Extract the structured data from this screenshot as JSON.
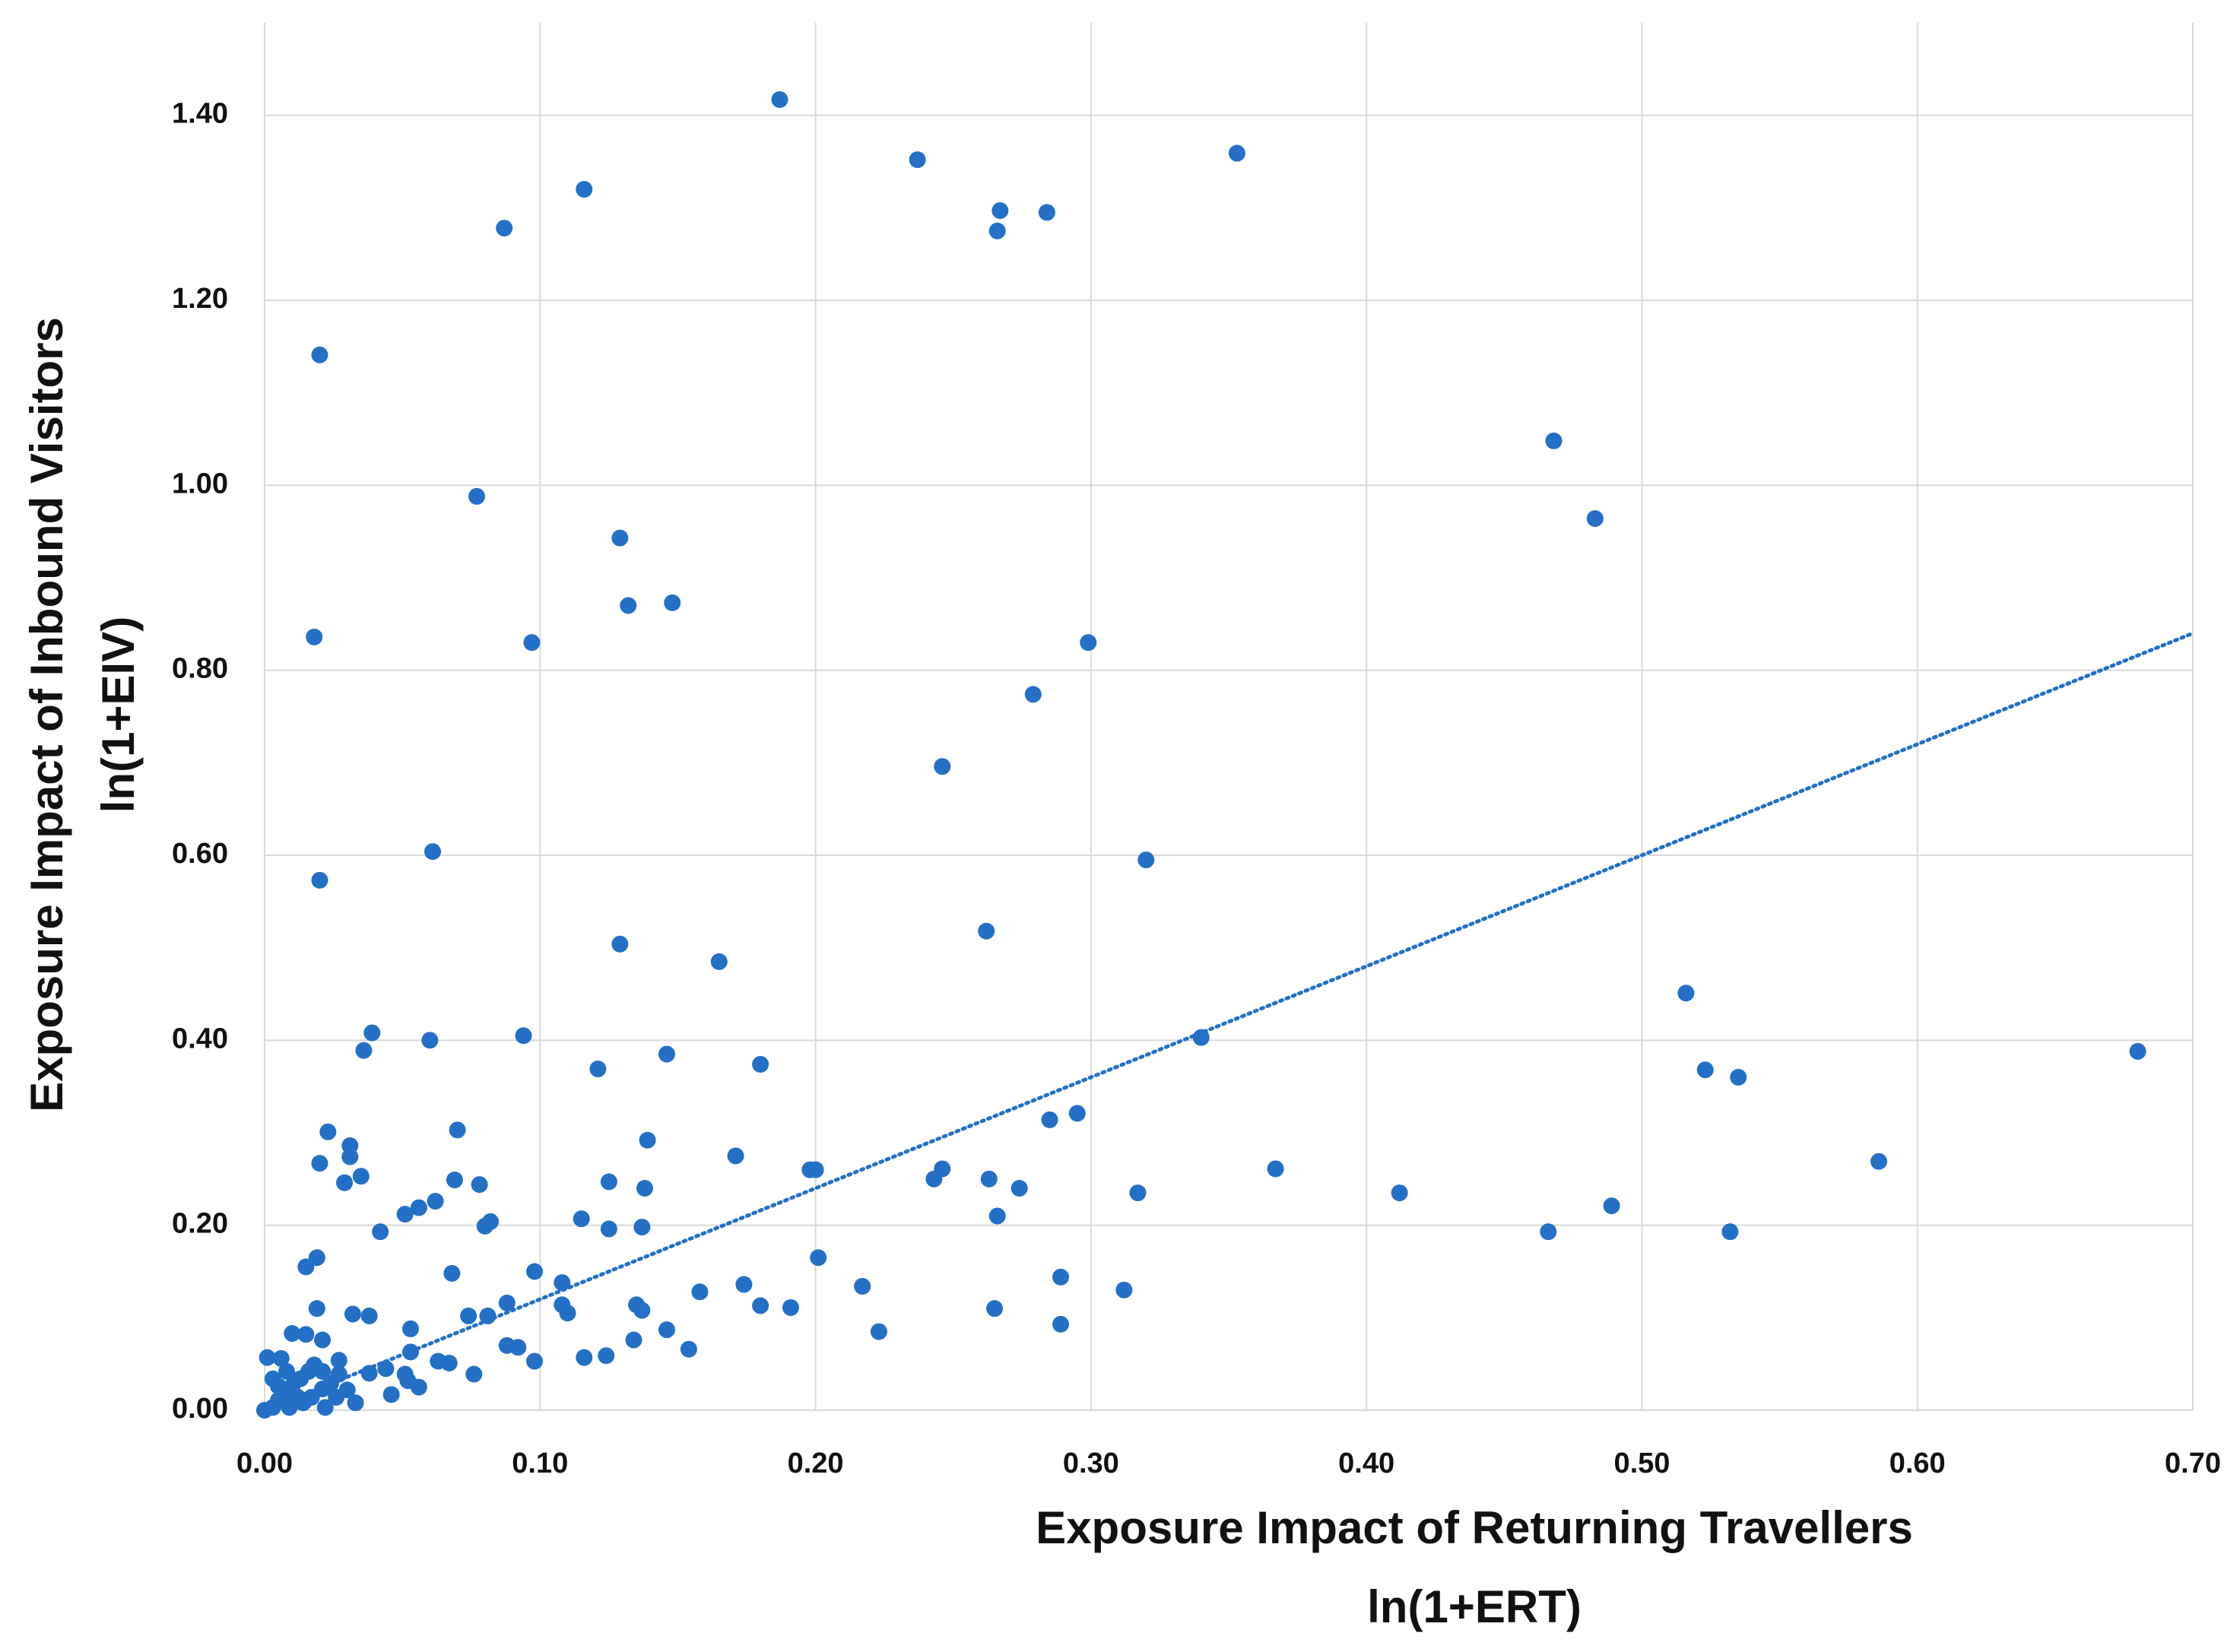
{
  "chart_data": {
    "type": "scatter",
    "x_label": [
      "Exposure Impact of Returning Travellers",
      "ln(1+ERT)"
    ],
    "y_label": [
      "Exposure Impact of Inbound Visitors",
      "ln(1+EIV)"
    ],
    "xlim": [
      0,
      0.7
    ],
    "ylim": [
      0,
      1.5
    ],
    "xticks": [
      {
        "value": 0,
        "label": "0.00"
      },
      {
        "value": 0.1,
        "label": "0.10"
      },
      {
        "value": 0.2,
        "label": "0.20"
      },
      {
        "value": 0.3,
        "label": "0.30"
      },
      {
        "value": 0.4,
        "label": "0.40"
      },
      {
        "value": 0.5,
        "label": "0.50"
      },
      {
        "value": 0.6,
        "label": "0.60"
      },
      {
        "value": 0.7,
        "label": "0.70"
      }
    ],
    "yticks": [
      {
        "value": 0,
        "label": "0.00"
      },
      {
        "value": 0.2,
        "label": "0.20"
      },
      {
        "value": 0.4,
        "label": "0.40"
      },
      {
        "value": 0.6,
        "label": "0.60"
      },
      {
        "value": 0.8,
        "label": "0.80"
      },
      {
        "value": 1.0,
        "label": "1.00"
      },
      {
        "value": 1.2,
        "label": "1.20"
      },
      {
        "value": 1.4,
        "label": "1.40"
      }
    ],
    "grid": true,
    "color": "#2370c6",
    "x": [
      0.187,
      0.237,
      0.353,
      0.116,
      0.267,
      0.284,
      0.266,
      0.087,
      0.02,
      0.468,
      0.483,
      0.077,
      0.129,
      0.132,
      0.148,
      0.097,
      0.018,
      0.299,
      0.279,
      0.246,
      0.061,
      0.32,
      0.02,
      0.129,
      0.262,
      0.165,
      0.516,
      0.34,
      0.68,
      0.523,
      0.535,
      0.039,
      0.036,
      0.06,
      0.094,
      0.146,
      0.18,
      0.121,
      0.295,
      0.285,
      0.023,
      0.07,
      0.139,
      0.031,
      0.031,
      0.02,
      0.171,
      0.586,
      0.367,
      0.246,
      0.198,
      0.2,
      0.243,
      0.263,
      0.035,
      0.029,
      0.069,
      0.078,
      0.125,
      0.274,
      0.138,
      0.317,
      0.412,
      0.062,
      0.056,
      0.051,
      0.489,
      0.266,
      0.115,
      0.082,
      0.08,
      0.125,
      0.137,
      0.042,
      0.466,
      0.532,
      0.019,
      0.201,
      0.015,
      0.068,
      0.098,
      0.289,
      0.108,
      0.174,
      0.217,
      0.158,
      0.312,
      0.088,
      0.108,
      0.135,
      0.18,
      0.191,
      0.265,
      0.019,
      0.137,
      0.11,
      0.074,
      0.081,
      0.032,
      0.038,
      0.289,
      0.223,
      0.146,
      0.053,
      0.01,
      0.015,
      0.021,
      0.134,
      0.088,
      0.092,
      0.154,
      0.053,
      0.116,
      0.124,
      0.098,
      0.063,
      0.067,
      0.001,
      0.006,
      0.027,
      0.076,
      0.038,
      0.044,
      0.051,
      0.052,
      0.056,
      0.046,
      0.033,
      0.003,
      0.005,
      0.008,
      0.01,
      0.013,
      0.016,
      0.018,
      0.003,
      0.005,
      0.009,
      0.014,
      0.017,
      0.021,
      0.024,
      0.027,
      0.022,
      0.026,
      0.03,
      0.012,
      0,
      0.008,
      0.021
    ],
    "y": [
      1.417,
      1.352,
      1.359,
      1.32,
      1.297,
      1.295,
      1.275,
      1.278,
      1.141,
      1.048,
      0.964,
      0.988,
      0.943,
      0.87,
      0.873,
      0.83,
      0.836,
      0.83,
      0.774,
      0.696,
      0.604,
      0.595,
      0.573,
      0.504,
      0.518,
      0.485,
      0.451,
      0.403,
      0.388,
      0.368,
      0.36,
      0.408,
      0.389,
      0.4,
      0.405,
      0.385,
      0.374,
      0.369,
      0.321,
      0.314,
      0.301,
      0.303,
      0.292,
      0.286,
      0.274,
      0.267,
      0.275,
      0.269,
      0.261,
      0.261,
      0.26,
      0.26,
      0.25,
      0.25,
      0.253,
      0.246,
      0.249,
      0.244,
      0.247,
      0.24,
      0.24,
      0.235,
      0.235,
      0.226,
      0.219,
      0.212,
      0.221,
      0.21,
      0.207,
      0.204,
      0.199,
      0.196,
      0.198,
      0.193,
      0.193,
      0.193,
      0.165,
      0.165,
      0.155,
      0.148,
      0.15,
      0.144,
      0.138,
      0.136,
      0.134,
      0.128,
      0.13,
      0.116,
      0.114,
      0.114,
      0.113,
      0.111,
      0.11,
      0.11,
      0.108,
      0.105,
      0.102,
      0.102,
      0.104,
      0.102,
      0.093,
      0.085,
      0.087,
      0.088,
      0.083,
      0.082,
      0.076,
      0.076,
      0.07,
      0.068,
      0.066,
      0.063,
      0.057,
      0.059,
      0.053,
      0.053,
      0.051,
      0.057,
      0.056,
      0.054,
      0.039,
      0.04,
      0.045,
      0.039,
      0.032,
      0.025,
      0.017,
      0.008,
      0.003,
      0.011,
      0.019,
      0.026,
      0.034,
      0.042,
      0.049,
      0.034,
      0.026,
      0.003,
      0.008,
      0.014,
      0.023,
      0.029,
      0.039,
      0.003,
      0.014,
      0.022,
      0.014,
      0,
      0.042,
      0.042
    ],
    "trendline": {
      "x": [
        0,
        0.7
      ],
      "y": [
        0,
        0.84
      ]
    }
  }
}
